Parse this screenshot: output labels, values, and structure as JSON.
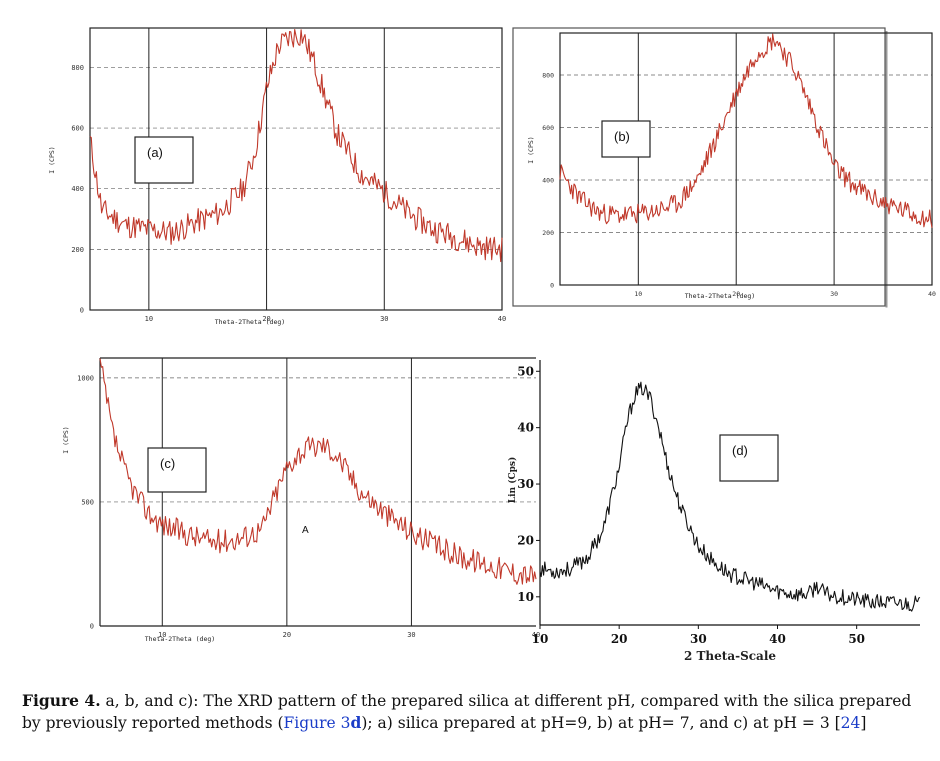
{
  "caption": {
    "figure_label": "Figure 4.",
    "text_1": " a, b, and c): The XRD pattern of the prepared silica at different pH, compared with the silica prepared by previously reported methods (",
    "link_text": "Figure 3",
    "link_bold": "d",
    "text_2": "); a) silica prepared at pH=9, b) at pH= 7, and c) at pH = 3 [",
    "ref": "24",
    "text_3": "]"
  },
  "chart_data": [
    {
      "id": "a",
      "type": "line",
      "panel_label": "(a)",
      "xlabel": "Theta-2Theta (deg)",
      "ylabel": "I (CPS)",
      "xlim": [
        5,
        40
      ],
      "ylim": [
        0,
        930
      ],
      "xticks": [
        10,
        20,
        30,
        40
      ],
      "xtick_labels": [
        "10",
        "20",
        "30",
        "40"
      ],
      "yticks": [
        0,
        200,
        400,
        600,
        800
      ],
      "ytick_labels": [
        "0",
        "200",
        "400",
        "600",
        "800"
      ],
      "grid": true,
      "line_color": "#c0392b",
      "series": [
        {
          "x": [
            5,
            6,
            8,
            10,
            12,
            14,
            16,
            18,
            19,
            20,
            21,
            22,
            23,
            24,
            25,
            26,
            28,
            30,
            32,
            34,
            36,
            38,
            40
          ],
          "y": [
            560,
            330,
            280,
            265,
            255,
            290,
            320,
            400,
            520,
            730,
            870,
            900,
            910,
            820,
            700,
            580,
            450,
            390,
            320,
            270,
            240,
            210,
            200
          ]
        }
      ]
    },
    {
      "id": "b",
      "type": "line",
      "panel_label": "(b)",
      "xlabel": "Theta-2Theta (deg)",
      "ylabel": "I (CPS)",
      "xlim": [
        2,
        40
      ],
      "ylim": [
        0,
        960
      ],
      "xticks": [
        10,
        20,
        30,
        40
      ],
      "xtick_labels": [
        "10",
        "20",
        "30",
        "40"
      ],
      "yticks": [
        0,
        200,
        400,
        600,
        800
      ],
      "ytick_labels": [
        "0",
        "200",
        "400",
        "600",
        "800"
      ],
      "grid": true,
      "line_color": "#c0392b",
      "series": [
        {
          "x": [
            2,
            4,
            6,
            8,
            10,
            12,
            14,
            16,
            18,
            20,
            22,
            24,
            26,
            28,
            30,
            32,
            34,
            36,
            38,
            40
          ],
          "y": [
            430,
            330,
            275,
            265,
            270,
            285,
            310,
            400,
            560,
            730,
            880,
            940,
            820,
            640,
            450,
            380,
            330,
            300,
            270,
            250
          ]
        }
      ]
    },
    {
      "id": "c",
      "type": "line",
      "panel_label": "(c)",
      "xlabel": "Theta-2Theta (deg)",
      "ylabel": "I (CPS)",
      "xlim": [
        5,
        40
      ],
      "ylim": [
        0,
        1080
      ],
      "xticks": [
        10,
        20,
        30,
        40
      ],
      "xtick_labels": [
        "10",
        "20",
        "30",
        "40"
      ],
      "yticks": [
        0,
        500,
        1000
      ],
      "ytick_labels": [
        "0",
        "500",
        "1000"
      ],
      "annotation": "A",
      "grid": true,
      "line_color": "#c0392b",
      "series": [
        {
          "x": [
            5,
            6,
            7,
            8,
            9,
            10,
            12,
            14,
            16,
            18,
            19,
            20,
            21,
            22,
            23,
            24,
            25,
            26,
            28,
            30,
            32,
            34,
            36,
            38,
            40
          ],
          "y": [
            1060,
            780,
            620,
            520,
            450,
            410,
            370,
            340,
            350,
            390,
            520,
            640,
            700,
            720,
            730,
            690,
            610,
            540,
            450,
            380,
            320,
            280,
            250,
            220,
            200
          ]
        }
      ]
    },
    {
      "id": "d",
      "type": "line",
      "panel_label": "(d)",
      "xlabel": "2 Theta-Scale",
      "ylabel": "Lin (Cps)",
      "xlim": [
        10,
        58
      ],
      "ylim": [
        5,
        52
      ],
      "xticks": [
        10,
        20,
        30,
        40,
        50
      ],
      "xtick_labels": [
        "10",
        "20",
        "30",
        "40",
        "50"
      ],
      "yticks": [
        10,
        20,
        30,
        40,
        50
      ],
      "ytick_labels": [
        "10",
        "20",
        "30",
        "40",
        "50"
      ],
      "grid": false,
      "line_color": "#111111",
      "series": [
        {
          "x": [
            10,
            12,
            14,
            16,
            18,
            20,
            21,
            22,
            23,
            24,
            25,
            26,
            27,
            28,
            30,
            32,
            34,
            36,
            38,
            40,
            42,
            44,
            45,
            46,
            48,
            50,
            52,
            54,
            56,
            58
          ],
          "y": [
            15,
            14.5,
            15,
            17,
            22,
            33,
            41,
            46,
            47,
            45,
            40,
            34,
            29,
            25,
            19,
            16,
            14,
            13,
            12,
            11,
            10.5,
            10.5,
            12,
            10.5,
            10,
            9.5,
            9,
            9,
            8.8,
            8.8
          ]
        }
      ]
    }
  ]
}
